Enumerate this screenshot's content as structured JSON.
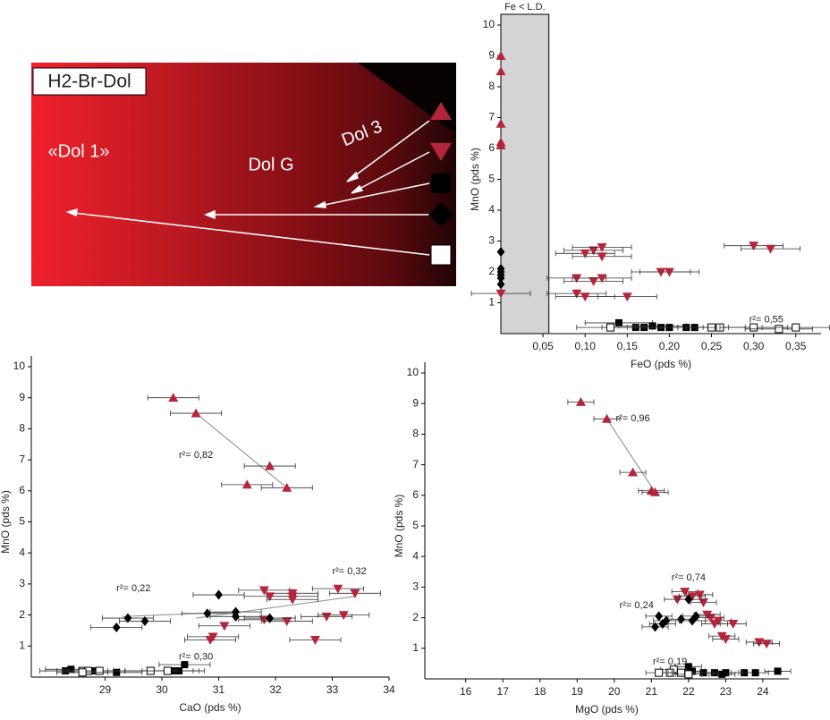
{
  "photo": {
    "title": "H2-Br-Dol",
    "labels": [
      "«Dol 1»",
      "Dol G",
      "Dol 3"
    ]
  },
  "chart_data": [
    {
      "type": "scatter",
      "xlabel": "FeO (pds %)",
      "ylabel": "MnO (pds %)",
      "xlim": [
        0,
        0.38
      ],
      "ylim": [
        0,
        10
      ],
      "xticks": [
        {
          "value": 0.05,
          "label": "0,05"
        },
        {
          "value": 0.1,
          "label": "0,10"
        },
        {
          "value": 0.15,
          "label": "0,15"
        },
        {
          "value": 0.2,
          "label": "0,20"
        },
        {
          "value": 0.25,
          "label": "0,25"
        },
        {
          "value": 0.3,
          "label": "0,30"
        },
        {
          "value": 0.35,
          "label": "0,35"
        }
      ],
      "yticks": [
        1,
        2,
        3,
        4,
        5,
        6,
        7,
        8,
        9,
        10
      ],
      "shaded_region": {
        "label": "Fe < L.D.",
        "xlim": [
          0,
          0.057
        ]
      },
      "annotations": [
        "r²= 0,55"
      ],
      "trendlines": [],
      "series": [
        {
          "marker": "triangle-up",
          "color": "#b5253a",
          "x": [
            0,
            0,
            0,
            0,
            0
          ],
          "y": [
            9.0,
            8.5,
            6.8,
            6.2,
            6.1
          ],
          "xerr": null
        },
        {
          "marker": "triangle-down",
          "color": "#b5253a",
          "x": [
            0.11,
            0.12,
            0.1,
            0.12,
            0.09,
            0.11,
            0.12,
            0.09,
            0.1,
            0.15,
            0.19,
            0.2,
            0.3,
            0.32,
            0
          ],
          "y": [
            2.7,
            2.8,
            2.6,
            2.5,
            1.8,
            1.7,
            1.8,
            1.3,
            1.2,
            1.2,
            2.0,
            2.0,
            2.85,
            2.75,
            1.3
          ],
          "xerr": 0.035
        },
        {
          "marker": "diamond",
          "color": "#000000",
          "x": [
            0,
            0,
            0,
            0,
            0,
            0
          ],
          "y": [
            2.65,
            2.1,
            2.0,
            1.9,
            1.8,
            1.6
          ],
          "xerr": null
        },
        {
          "marker": "square",
          "color": "#000000",
          "x": [
            0.14,
            0.16,
            0.17,
            0.18,
            0.19,
            0.2,
            0.22,
            0.23
          ],
          "y": [
            0.35,
            0.2,
            0.2,
            0.25,
            0.2,
            0.2,
            0.2,
            0.2
          ],
          "xerr": 0.04
        },
        {
          "marker": "open-square",
          "color": "#000000",
          "x": [
            0.13,
            0.25,
            0.26,
            0.3,
            0.33,
            0.35
          ],
          "y": [
            0.2,
            0.2,
            0.2,
            0.2,
            0.15,
            0.2
          ],
          "xerr": 0.04
        }
      ]
    },
    {
      "type": "scatter",
      "xlabel": "CaO (pds %)",
      "ylabel": "MnO (pds %)",
      "xlim": [
        27.7,
        34
      ],
      "ylim": [
        0,
        10
      ],
      "xticks": [
        29,
        30,
        31,
        32,
        33,
        34
      ],
      "yticks": [
        1,
        2,
        3,
        4,
        5,
        6,
        7,
        8,
        9,
        10
      ],
      "annotations": [
        "r²= 0,82",
        "r²= 0,22",
        "r²= 0,32",
        "r²= 0,30"
      ],
      "trendlines": [
        {
          "x": [
            30.6,
            32.2
          ],
          "y": [
            8.5,
            6.1
          ]
        },
        {
          "x": [
            29.3,
            31.3
          ],
          "y": [
            1.95,
            2.1
          ]
        },
        {
          "x": [
            30.6,
            33.4
          ],
          "y": [
            1.9,
            2.6
          ]
        }
      ],
      "series": [
        {
          "marker": "triangle-up",
          "color": "#b5253a",
          "x": [
            30.2,
            30.6,
            31.9,
            31.5,
            32.2
          ],
          "y": [
            9.0,
            8.5,
            6.8,
            6.2,
            6.1
          ],
          "xerr": 0.45
        },
        {
          "marker": "triangle-down",
          "color": "#b5253a",
          "x": [
            31.8,
            32.3,
            33.1,
            33.4,
            32.3,
            31.9,
            32.3,
            31.8,
            32.2,
            32.9,
            33.2,
            31.1,
            30.9,
            30.85,
            32.7
          ],
          "y": [
            2.8,
            2.7,
            2.85,
            2.7,
            2.6,
            2.6,
            2.5,
            1.85,
            1.8,
            1.95,
            2.0,
            1.65,
            1.3,
            1.2,
            1.2
          ],
          "xerr": 0.45
        },
        {
          "marker": "diamond",
          "color": "#000000",
          "x": [
            31.0,
            29.4,
            29.7,
            29.2,
            30.8,
            31.3,
            31.3,
            31.9
          ],
          "y": [
            2.65,
            1.9,
            1.8,
            1.6,
            2.05,
            2.1,
            1.95,
            1.9
          ],
          "xerr": 0.45
        },
        {
          "marker": "square",
          "color": "#000000",
          "x": [
            28.3,
            28.4,
            28.8,
            29.2,
            29.8,
            30.2,
            30.4,
            30.3
          ],
          "y": [
            0.2,
            0.25,
            0.2,
            0.15,
            0.2,
            0.2,
            0.4,
            0.2
          ],
          "xerr": 0.45
        },
        {
          "marker": "open-square",
          "color": "#000000",
          "x": [
            28.6,
            28.7,
            28.9,
            29.8,
            30.1,
            28.6
          ],
          "y": [
            0.2,
            0.2,
            0.2,
            0.2,
            0.2,
            0.15
          ],
          "xerr": 0.45
        }
      ]
    },
    {
      "type": "scatter",
      "xlabel": "MgO (pds %)",
      "ylabel": "MnO (pds %)",
      "xlim": [
        14.9,
        24.7
      ],
      "ylim": [
        0,
        10
      ],
      "xticks": [
        16,
        17,
        18,
        19,
        20,
        21,
        22,
        23,
        24
      ],
      "yticks": [
        1,
        2,
        3,
        4,
        5,
        6,
        7,
        8,
        9,
        10
      ],
      "annotations": [
        "r²= 0,96",
        "r²= 0,74",
        "r²= 0,24",
        "r²= 0,19"
      ],
      "trendlines": [
        {
          "x": [
            19.8,
            21.1
          ],
          "y": [
            8.5,
            6.1
          ]
        }
      ],
      "series": [
        {
          "marker": "triangle-up",
          "color": "#b5253a",
          "x": [
            19.1,
            19.8,
            20.5,
            21.0,
            21.1
          ],
          "y": [
            9.05,
            8.5,
            6.75,
            6.15,
            6.1
          ],
          "xerr": 0.35
        },
        {
          "marker": "triangle-down",
          "color": "#b5253a",
          "x": [
            21.9,
            22.3,
            21.7,
            22.1,
            22.4,
            22.6,
            22.8,
            22.7,
            23.2,
            22.9,
            23.0,
            23.9,
            24.1,
            22.5
          ],
          "y": [
            2.85,
            2.75,
            2.6,
            2.7,
            2.5,
            2.0,
            1.9,
            1.8,
            1.8,
            1.4,
            1.3,
            1.2,
            1.15,
            2.1
          ],
          "xerr": 0.35
        },
        {
          "marker": "diamond",
          "color": "#000000",
          "x": [
            21.2,
            21.4,
            21.1,
            21.3,
            21.8,
            22.2,
            22.0,
            22.1
          ],
          "y": [
            2.05,
            1.9,
            1.7,
            1.8,
            1.95,
            2.05,
            2.6,
            1.9
          ],
          "xerr": 0.35
        },
        {
          "marker": "square",
          "color": "#000000",
          "x": [
            22.0,
            22.1,
            22.4,
            22.7,
            23.0,
            23.5,
            23.8,
            24.4,
            22.9
          ],
          "y": [
            0.4,
            0.25,
            0.2,
            0.2,
            0.2,
            0.2,
            0.2,
            0.25,
            0.15
          ],
          "xerr": 0.35
        },
        {
          "marker": "open-square",
          "color": "#000000",
          "x": [
            21.6,
            21.5,
            21.8,
            22.0,
            21.2
          ],
          "y": [
            0.3,
            0.2,
            0.2,
            0.15,
            0.2
          ],
          "xerr": 0.35
        }
      ]
    }
  ]
}
